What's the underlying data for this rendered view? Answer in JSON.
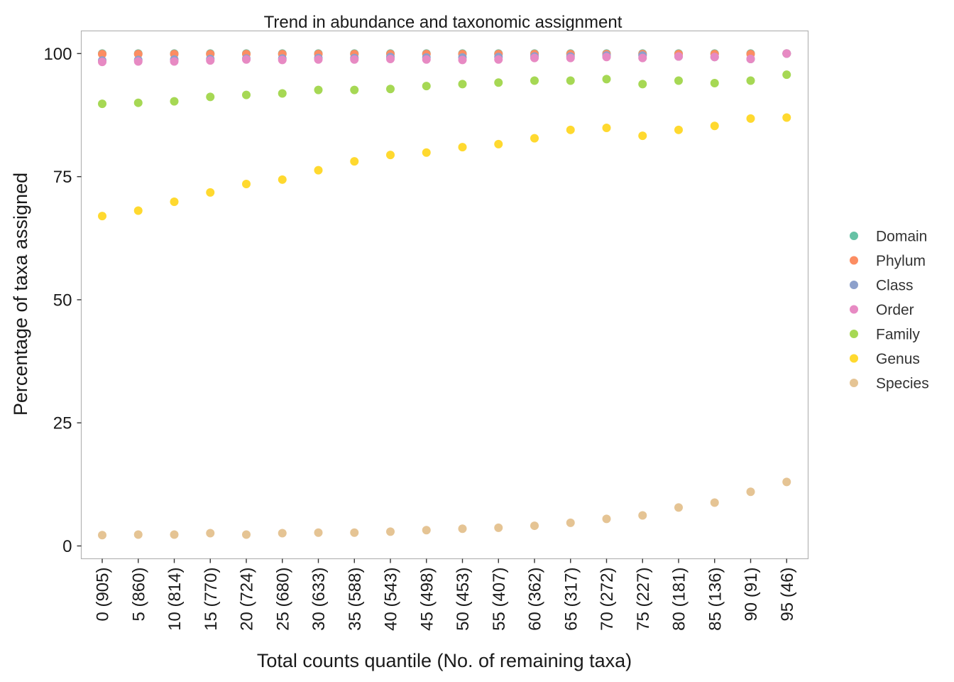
{
  "chart_data": {
    "type": "scatter",
    "title": "Trend in abundance and taxonomic assignment",
    "xlabel": "Total counts quantile (No. of remaining taxa)",
    "ylabel": "Percentage of taxa assigned",
    "categories": [
      "0 (905)",
      "5 (860)",
      "10 (814)",
      "15 (770)",
      "20 (724)",
      "25 (680)",
      "30 (633)",
      "35 (588)",
      "40 (543)",
      "45 (498)",
      "50 (453)",
      "55 (407)",
      "60 (362)",
      "65 (317)",
      "70 (272)",
      "75 (227)",
      "80 (181)",
      "85 (136)",
      "90 (91)",
      "95 (46)"
    ],
    "yticks": [
      0,
      25,
      50,
      75,
      100
    ],
    "ylim": [
      -2.6,
      104.6
    ],
    "grid": false,
    "legend_position": "right",
    "series": [
      {
        "name": "Domain",
        "color": "#66C2A5",
        "values": [
          100,
          100,
          100,
          100,
          100,
          100,
          100,
          100,
          100,
          100,
          100,
          100,
          100,
          100,
          100,
          100,
          100,
          100,
          100,
          100
        ]
      },
      {
        "name": "Phylum",
        "color": "#FC8D62",
        "values": [
          99.9,
          99.9,
          99.9,
          99.9,
          99.9,
          99.9,
          99.9,
          99.9,
          99.9,
          99.9,
          99.9,
          99.9,
          99.9,
          99.9,
          99.9,
          99.9,
          99.9,
          99.9,
          99.9,
          100
        ]
      },
      {
        "name": "Class",
        "color": "#8DA0CB",
        "values": [
          98.6,
          98.7,
          98.8,
          98.9,
          99.0,
          99.0,
          99.1,
          99.1,
          99.3,
          99.2,
          99.2,
          99.3,
          99.4,
          99.4,
          99.6,
          99.6,
          99.4,
          99.3,
          98.9,
          100
        ]
      },
      {
        "name": "Order",
        "color": "#E78AC3",
        "values": [
          98.3,
          98.4,
          98.4,
          98.6,
          98.8,
          98.7,
          98.8,
          98.8,
          98.9,
          98.8,
          98.7,
          98.8,
          99.1,
          99.1,
          99.3,
          99.1,
          99.4,
          99.3,
          98.9,
          100
        ]
      },
      {
        "name": "Family",
        "color": "#A6D854",
        "values": [
          89.8,
          90.0,
          90.3,
          91.2,
          91.6,
          91.9,
          92.6,
          92.6,
          92.8,
          93.4,
          93.8,
          94.1,
          94.5,
          94.5,
          94.8,
          93.8,
          94.5,
          94.0,
          94.5,
          95.7
        ]
      },
      {
        "name": "Genus",
        "color": "#FFD92F",
        "values": [
          67.0,
          68.1,
          69.9,
          71.8,
          73.5,
          74.4,
          76.3,
          78.1,
          79.4,
          79.9,
          81.0,
          81.6,
          82.8,
          84.5,
          84.9,
          83.3,
          84.5,
          85.3,
          86.8,
          87.0
        ]
      },
      {
        "name": "Species",
        "color": "#E5C494",
        "values": [
          2.2,
          2.3,
          2.3,
          2.6,
          2.3,
          2.6,
          2.7,
          2.7,
          2.9,
          3.2,
          3.5,
          3.7,
          4.1,
          4.7,
          5.5,
          6.2,
          7.8,
          8.8,
          11.0,
          13.0
        ]
      }
    ]
  }
}
